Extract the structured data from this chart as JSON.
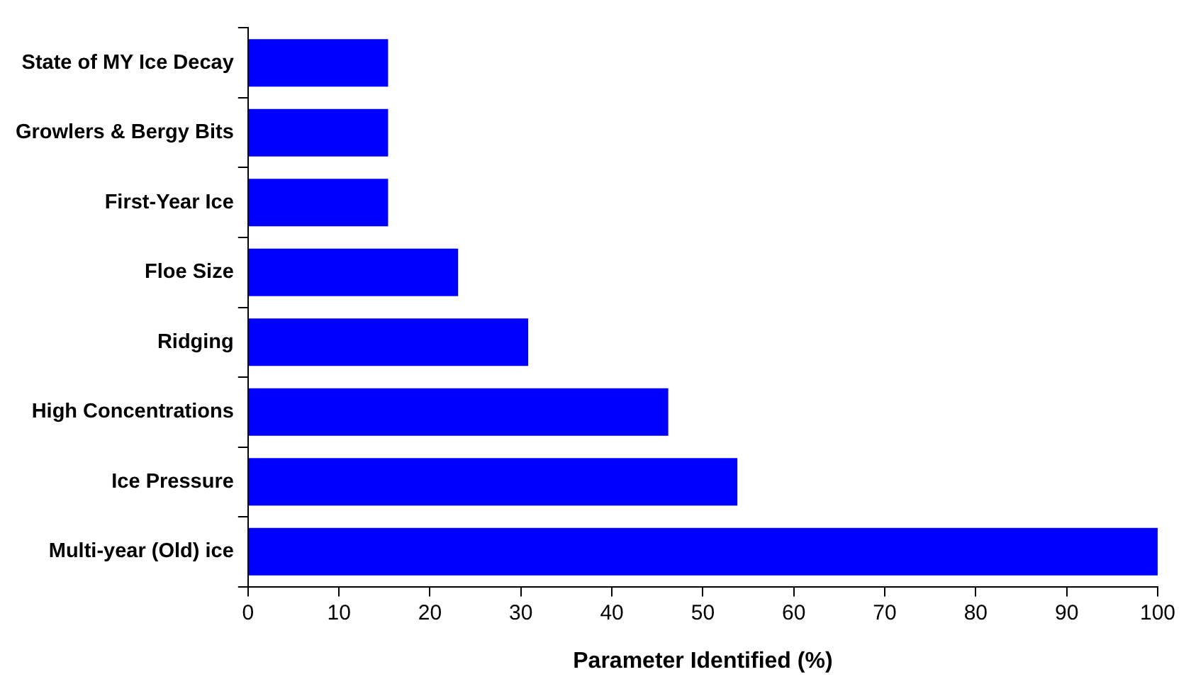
{
  "chart_data": {
    "type": "bar",
    "orientation": "horizontal",
    "xlabel": "Parameter Identified (%)",
    "categories": [
      "State of MY Ice Decay",
      "Growlers & Bergy Bits",
      "First-Year Ice",
      "Floe Size",
      "Ridging",
      "High Concentrations",
      "Ice Pressure",
      "Multi-year (Old) ice"
    ],
    "values": [
      15.4,
      15.4,
      15.4,
      23.1,
      30.8,
      46.2,
      53.8,
      100
    ],
    "color": "#0000ff",
    "xlim": [
      0,
      100
    ],
    "xticks": [
      0,
      10,
      20,
      30,
      40,
      50,
      60,
      70,
      80,
      90,
      100
    ],
    "grid": false,
    "legend": false
  }
}
